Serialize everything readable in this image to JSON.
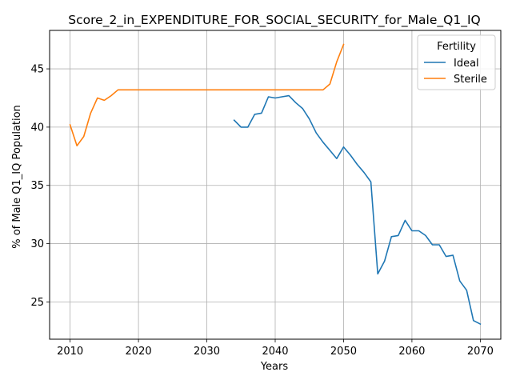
{
  "chart_data": {
    "type": "line",
    "title": "Score_2_in_EXPENDITURE_FOR_SOCIAL_SECURITY_for_Male_Q1_IQ",
    "xlabel": "Years",
    "ylabel": "% of Male Q1_IQ Population",
    "xlim": [
      2007,
      2073
    ],
    "ylim": [
      21.8,
      48.3
    ],
    "xticks": [
      2010,
      2020,
      2030,
      2040,
      2050,
      2060,
      2070
    ],
    "yticks": [
      25,
      30,
      35,
      40,
      45
    ],
    "grid": true,
    "legend": {
      "title": "Fertility",
      "position": "top-right"
    },
    "series": [
      {
        "name": "Ideal",
        "color": "#1f77b4",
        "x": [
          2034,
          2035,
          2036,
          2037,
          2038,
          2039,
          2040,
          2041,
          2042,
          2043,
          2044,
          2045,
          2046,
          2047,
          2048,
          2049,
          2050,
          2051,
          2052,
          2053,
          2054,
          2055,
          2056,
          2057,
          2058,
          2059,
          2060,
          2061,
          2062,
          2063,
          2064,
          2065,
          2066,
          2067,
          2068,
          2069,
          2070
        ],
        "y": [
          40.6,
          40.0,
          40.0,
          41.1,
          41.2,
          42.6,
          42.5,
          42.6,
          42.7,
          42.1,
          41.6,
          40.7,
          39.5,
          38.7,
          38.0,
          37.3,
          38.3,
          37.6,
          36.8,
          36.1,
          35.3,
          27.4,
          28.5,
          30.6,
          30.7,
          32.0,
          31.1,
          31.1,
          30.7,
          29.9,
          29.9,
          28.9,
          29.0,
          26.8,
          26.0,
          23.4,
          23.1
        ]
      },
      {
        "name": "Sterile",
        "color": "#ff7f0e",
        "x": [
          2010,
          2011,
          2012,
          2013,
          2014,
          2015,
          2016,
          2017,
          2018,
          2019,
          2020,
          2021,
          2022,
          2023,
          2024,
          2025,
          2026,
          2027,
          2028,
          2029,
          2030,
          2031,
          2032,
          2033,
          2034,
          2035,
          2036,
          2037,
          2038,
          2039,
          2040,
          2041,
          2042,
          2043,
          2044,
          2045,
          2046,
          2047,
          2048,
          2049,
          2050
        ],
        "y": [
          40.2,
          38.4,
          39.2,
          41.2,
          42.5,
          42.3,
          42.7,
          43.2,
          43.2,
          43.2,
          43.2,
          43.2,
          43.2,
          43.2,
          43.2,
          43.2,
          43.2,
          43.2,
          43.2,
          43.2,
          43.2,
          43.2,
          43.2,
          43.2,
          43.2,
          43.2,
          43.2,
          43.2,
          43.2,
          43.2,
          43.2,
          43.2,
          43.2,
          43.2,
          43.2,
          43.2,
          43.2,
          43.2,
          43.7,
          45.6,
          47.1
        ]
      }
    ]
  }
}
